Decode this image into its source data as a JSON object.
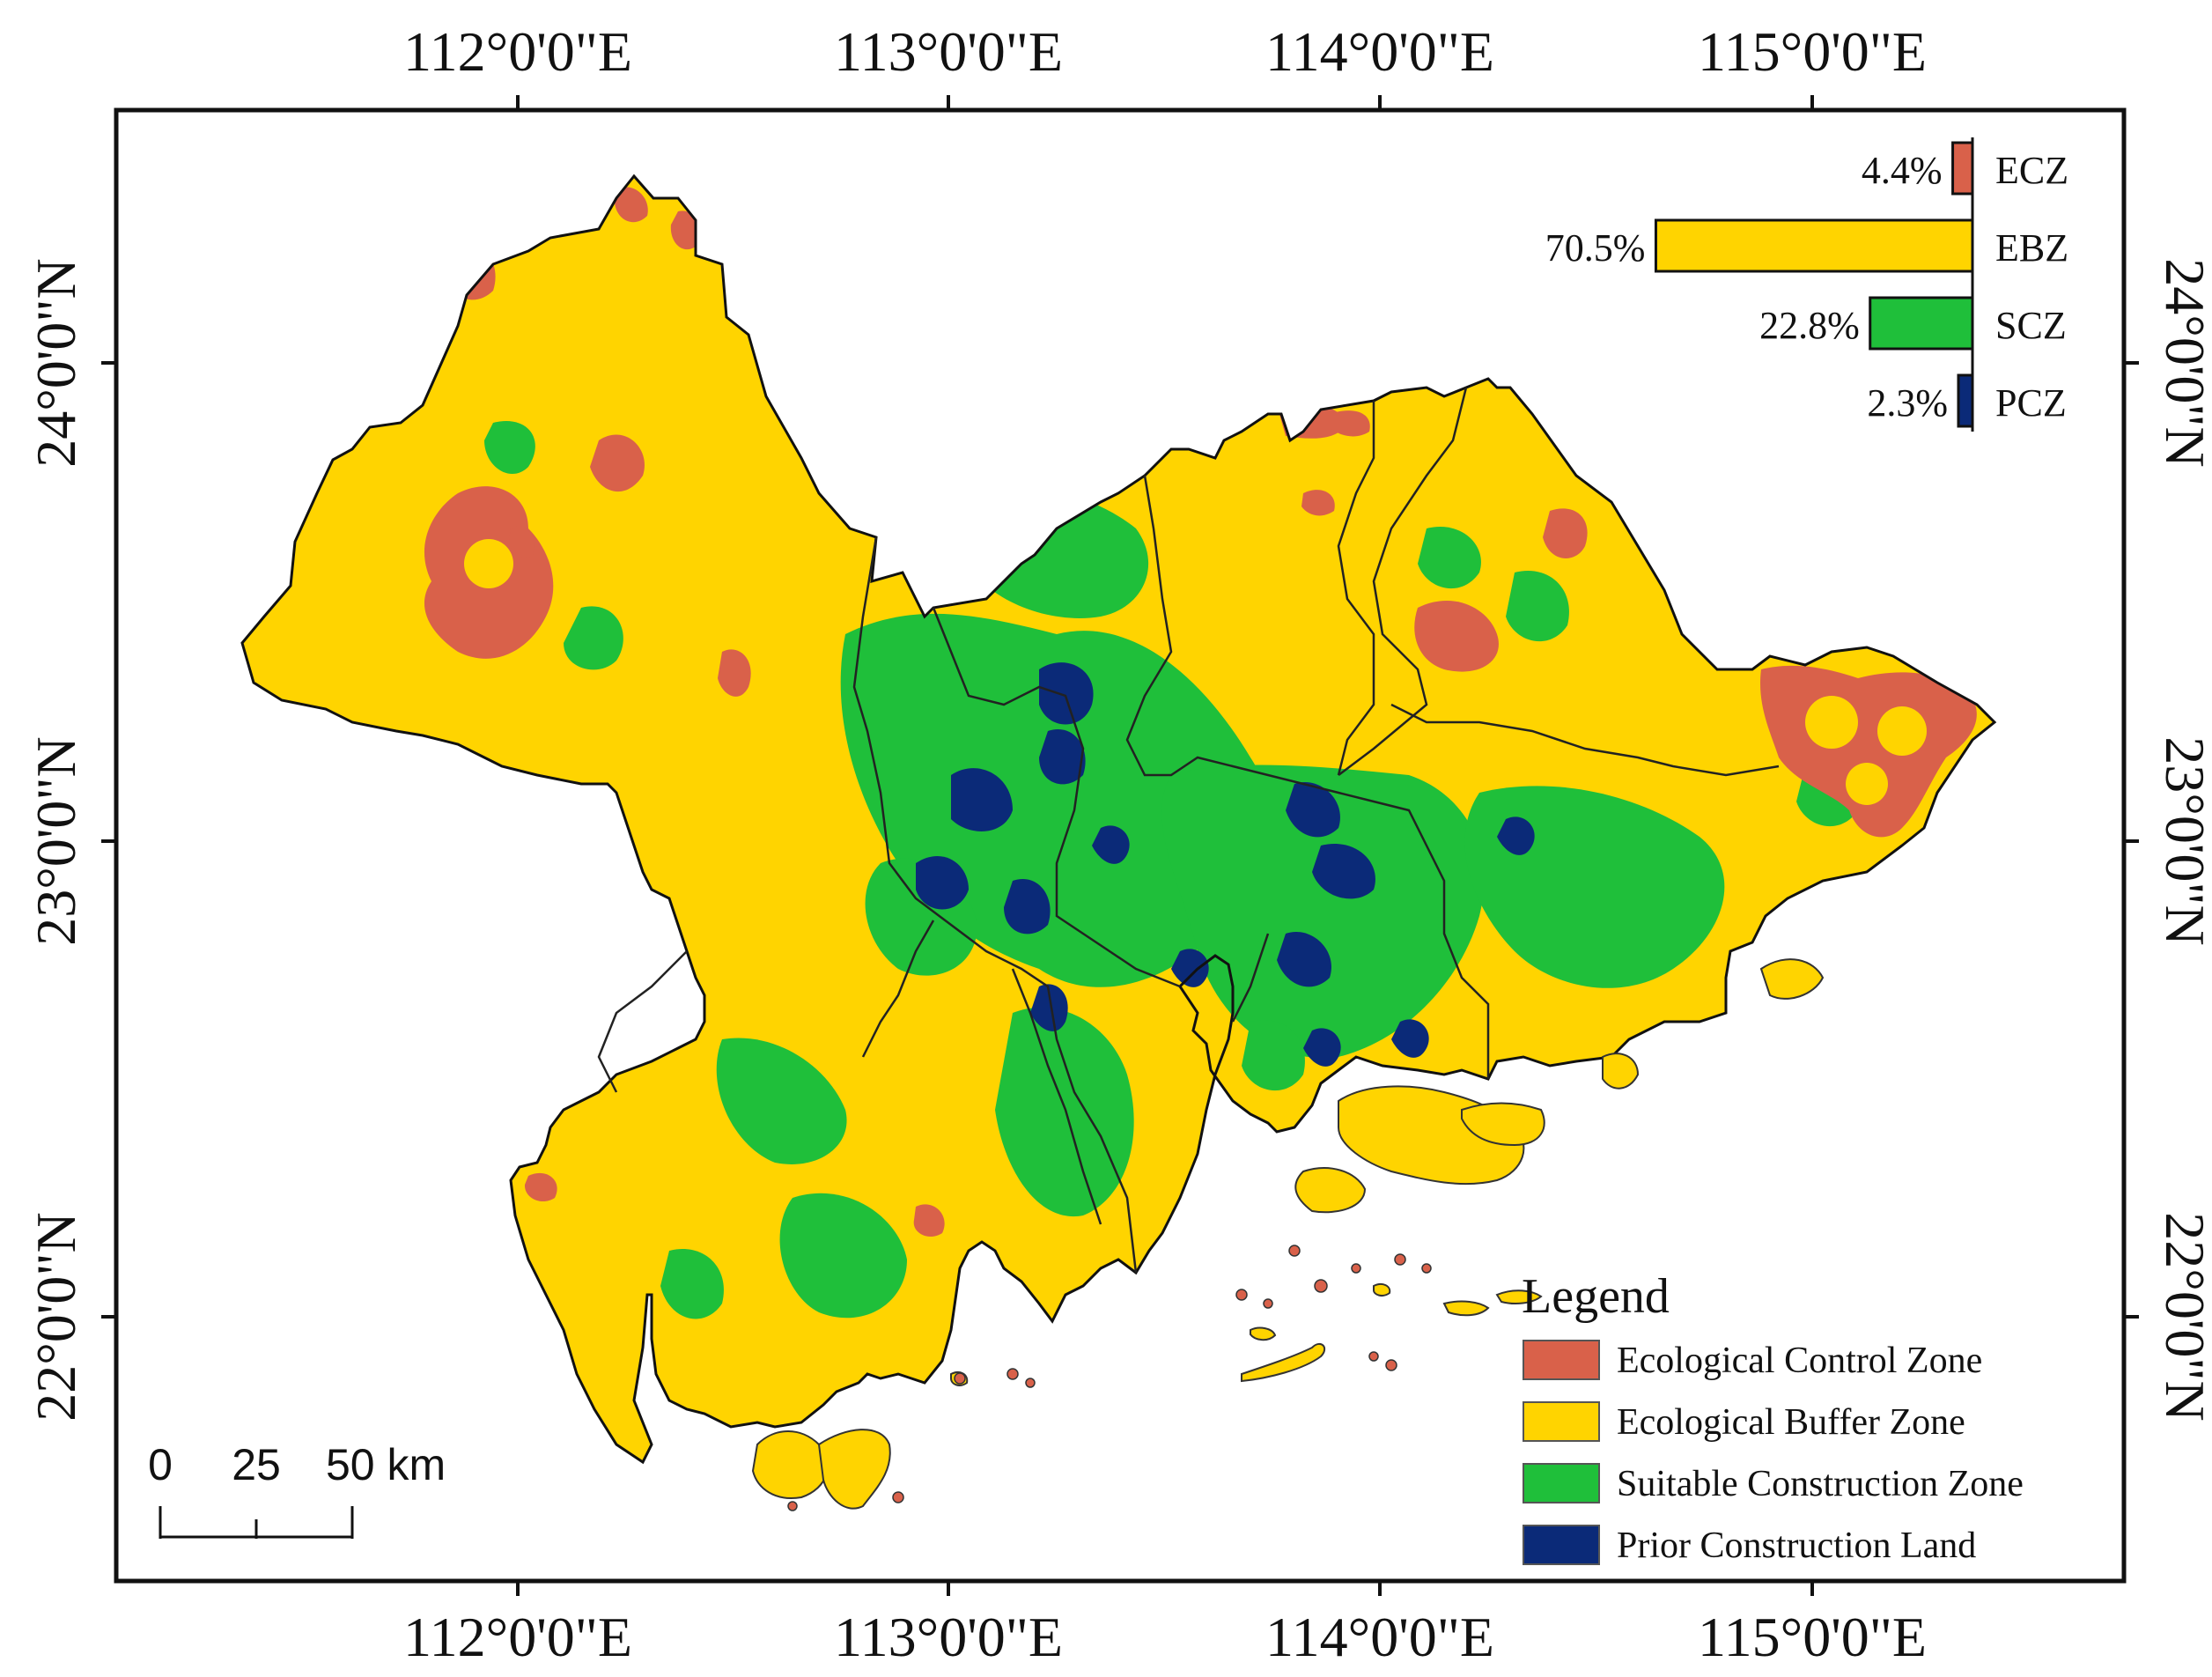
{
  "lon_labels": [
    "112°0'0\"E",
    "113°0'0\"E",
    "114°0'0\"E",
    "115°0'0\"E"
  ],
  "lat_labels": [
    "24°0'0\"N",
    "23°0'0\"N",
    "22°0'0\"N"
  ],
  "zones": [
    {
      "code": "ECZ",
      "name": "Ecological Control Zone",
      "percent": 4.4,
      "percent_label": "4.4%",
      "color": "#d9614a"
    },
    {
      "code": "EBZ",
      "name": "Ecological Buffer Zone",
      "percent": 70.5,
      "percent_label": "70.5%",
      "color": "#ffd400"
    },
    {
      "code": "SCZ",
      "name": "Suitable Construction Zone",
      "percent": 22.8,
      "percent_label": "22.8%",
      "color": "#1fbf3a"
    },
    {
      "code": "PCZ",
      "name": "Prior Construction Land",
      "percent": 2.3,
      "percent_label": "2.3%",
      "color": "#0b2a78"
    }
  ],
  "legend": {
    "title": "Legend"
  },
  "scale_bar": {
    "ticks": [
      "0",
      "25",
      "50 km"
    ]
  },
  "colors": {
    "water_outline": "#1d6b80",
    "boundary": "#111111",
    "frame": "#111111"
  }
}
